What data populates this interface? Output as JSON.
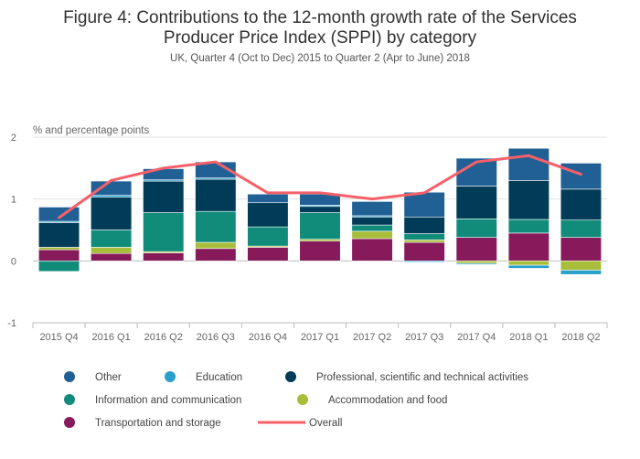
{
  "chart_data": {
    "type": "bar",
    "stacked": true,
    "title_line1": "Figure 4: Contributions to the 12-month growth rate of the Services",
    "title_line2": "Producer Price Index (SPPI) by category",
    "subtitle": "UK, Quarter 4 (Oct to Dec) 2015 to Quarter 2 (Apr to June) 2018",
    "ylabel": "% and percentage points",
    "ylim": [
      -1,
      2
    ],
    "yticks": [
      "-1",
      "0",
      "1",
      "2"
    ],
    "grid": true,
    "legend_position": "bottom",
    "categories": [
      "2015 Q4",
      "2016 Q1",
      "2016 Q2",
      "2016 Q3",
      "2016 Q4",
      "2017 Q1",
      "2017 Q2",
      "2017 Q3",
      "2017 Q4",
      "2018 Q1",
      "2018 Q2"
    ],
    "series": [
      {
        "name": "Transportation and storage",
        "color": "#871a5b",
        "values": [
          0.18,
          0.12,
          0.13,
          0.2,
          0.22,
          0.32,
          0.36,
          0.3,
          0.38,
          0.45,
          0.38
        ]
      },
      {
        "name": "Accommodation and food",
        "color": "#a8bd3a",
        "values": [
          0.04,
          0.1,
          0.02,
          0.1,
          0.02,
          0.03,
          0.12,
          0.04,
          -0.04,
          -0.07,
          -0.15
        ]
      },
      {
        "name": "Information and communication",
        "color": "#118c7b",
        "values": [
          -0.17,
          0.28,
          0.63,
          0.5,
          0.31,
          0.43,
          0.1,
          0.1,
          0.3,
          0.22,
          0.28
        ]
      },
      {
        "name": "Professional, scientific and technical activities",
        "color": "#003c57",
        "values": [
          0.4,
          0.53,
          0.51,
          0.52,
          0.39,
          0.1,
          0.13,
          0.27,
          0.53,
          0.63,
          0.5
        ]
      },
      {
        "name": "Education",
        "color": "#27a0cc",
        "values": [
          0.02,
          0.03,
          0.02,
          0.02,
          0.0,
          0.02,
          0.02,
          -0.02,
          -0.02,
          -0.05,
          -0.07
        ]
      },
      {
        "name": "Other",
        "color": "#206095",
        "values": [
          0.23,
          0.23,
          0.18,
          0.26,
          0.14,
          0.18,
          0.23,
          0.4,
          0.45,
          0.52,
          0.42
        ]
      }
    ],
    "line_series": {
      "name": "Overall",
      "color": "#f66068",
      "values": [
        0.7,
        1.3,
        1.5,
        1.6,
        1.1,
        1.1,
        1.0,
        1.1,
        1.6,
        1.7,
        1.4
      ]
    }
  },
  "legend": {
    "rows": [
      [
        {
          "label": "Other",
          "color": "#206095",
          "kind": "dot"
        },
        {
          "label": "Education",
          "color": "#27a0cc",
          "kind": "dot"
        },
        {
          "label": "Professional, scientific and technical activities",
          "color": "#003c57",
          "kind": "dot"
        }
      ],
      [
        {
          "label": "Information and communication",
          "color": "#118c7b",
          "kind": "dot"
        },
        {
          "label": "Accommodation and food",
          "color": "#a8bd3a",
          "kind": "dot"
        }
      ],
      [
        {
          "label": "Transportation and storage",
          "color": "#871a5b",
          "kind": "dot"
        },
        {
          "label": "Overall",
          "color": "#f66068",
          "kind": "line"
        }
      ]
    ]
  }
}
